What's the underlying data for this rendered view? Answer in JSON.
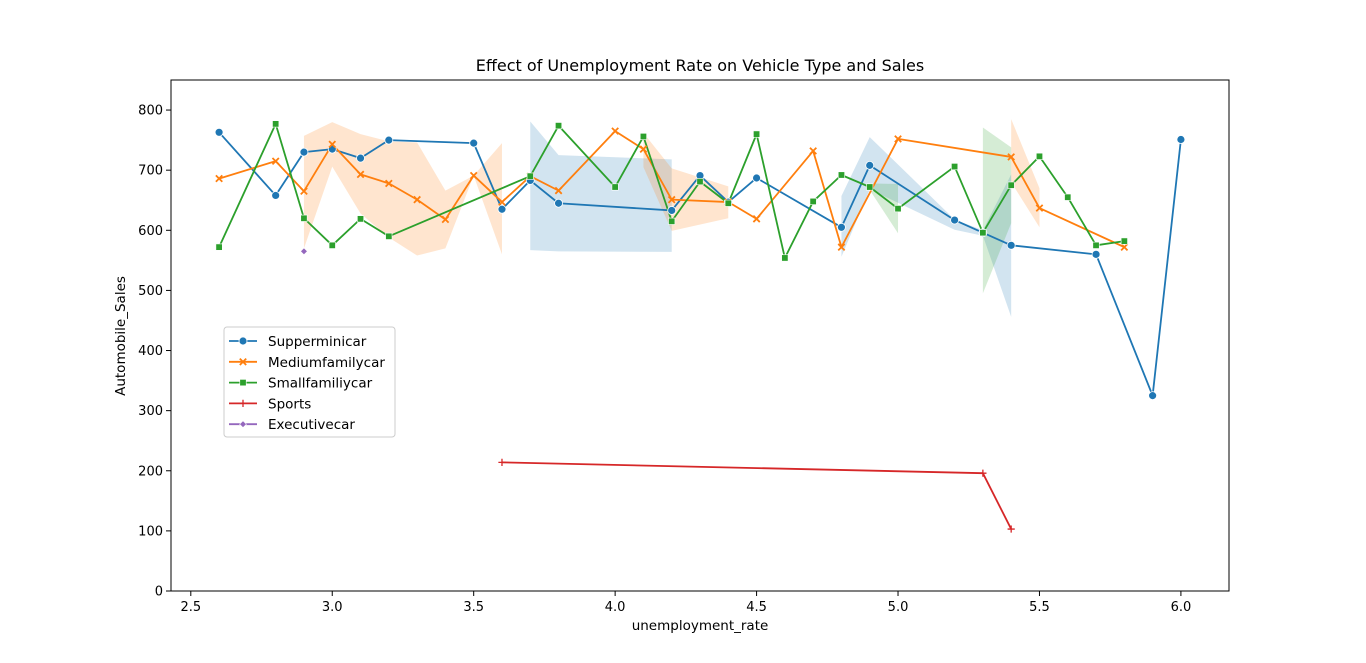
{
  "chart_data": {
    "type": "line",
    "title": "Effect of Unemployment Rate on Vehicle Type and Sales",
    "xlabel": "unemployment_rate",
    "ylabel": "Automobile_Sales",
    "xlim": [
      2.43,
      6.17
    ],
    "ylim": [
      0,
      850
    ],
    "xticks": [
      2.5,
      3.0,
      3.5,
      4.0,
      4.5,
      5.0,
      5.5,
      6.0
    ],
    "xtick_labels": [
      "2.5",
      "3.0",
      "3.5",
      "4.0",
      "4.5",
      "5.0",
      "5.5",
      "6.0"
    ],
    "yticks": [
      0,
      100,
      200,
      300,
      400,
      500,
      600,
      700,
      800
    ],
    "ytick_labels": [
      "0",
      "100",
      "200",
      "300",
      "400",
      "500",
      "600",
      "700",
      "800"
    ],
    "grid": false,
    "legend_position": "center-left",
    "series": [
      {
        "name": "Supperminicar",
        "color": "#1f77b4",
        "marker": "circle",
        "x": [
          2.6,
          2.8,
          2.9,
          3.0,
          3.1,
          3.2,
          3.5,
          3.6,
          3.7,
          3.8,
          4.2,
          4.3,
          4.4,
          4.5,
          4.8,
          4.9,
          5.2,
          5.3,
          5.4,
          5.7,
          5.9,
          6.0
        ],
        "y": [
          763,
          658,
          730,
          735,
          720,
          750,
          745,
          635,
          683,
          645,
          633,
          691,
          647,
          687,
          605,
          708,
          617,
          596,
          575,
          560,
          325,
          751
        ],
        "ci": [
          {
            "x": [
              3.7,
              3.8,
              4.2
            ],
            "lo": [
              567,
              565,
              564
            ],
            "hi": [
              781,
              725,
              718
            ]
          },
          {
            "x": [
              4.8,
              4.9,
              5.2,
              5.3,
              5.4
            ],
            "lo": [
              556,
              668,
              601,
              591,
              456
            ],
            "hi": [
              657,
              755,
              618,
              600,
              693
            ]
          }
        ]
      },
      {
        "name": "Mediumfamilycar",
        "color": "#ff7f0e",
        "marker": "x",
        "x": [
          2.6,
          2.8,
          2.9,
          3.0,
          3.1,
          3.2,
          3.3,
          3.4,
          3.5,
          3.6,
          3.7,
          3.8,
          4.0,
          4.1,
          4.2,
          4.4,
          4.5,
          4.7,
          4.8,
          5.0,
          5.4,
          5.5,
          5.8
        ],
        "y": [
          686,
          715,
          665,
          743,
          693,
          678,
          651,
          618,
          691,
          647,
          690,
          666,
          765,
          735,
          651,
          647,
          619,
          732,
          572,
          752,
          722,
          637,
          572
        ],
        "ci": [
          {
            "x": [
              2.9,
              3.0,
              3.1,
              3.2,
              3.3,
              3.4,
              3.5,
              3.6
            ],
            "lo": [
              570,
              706,
              628,
              588,
              558,
              570,
              691,
              560
            ],
            "hi": [
              757,
              780,
              760,
              748,
              746,
              666,
              691,
              745
            ]
          },
          {
            "x": [
              4.1,
              4.2,
              4.4
            ],
            "lo": [
              705,
              599,
              620
            ],
            "hi": [
              762,
              703,
              673
            ]
          },
          {
            "x": [
              5.4,
              5.5
            ],
            "lo": [
              680,
              605
            ],
            "hi": [
              785,
              670
            ]
          }
        ]
      },
      {
        "name": "Smallfamiliycar",
        "color": "#2ca02c",
        "marker": "square",
        "x": [
          2.6,
          2.8,
          2.9,
          3.0,
          3.1,
          3.2,
          3.7,
          3.8,
          4.0,
          4.1,
          4.2,
          4.3,
          4.4,
          4.5,
          4.6,
          4.7,
          4.8,
          4.9,
          5.0,
          5.2,
          5.3,
          5.4,
          5.5,
          5.6,
          5.7,
          5.8
        ],
        "y": [
          572,
          777,
          620,
          575,
          619,
          590,
          690,
          774,
          672,
          756,
          615,
          681,
          645,
          760,
          554,
          648,
          692,
          672,
          636,
          706,
          596,
          675,
          723,
          655,
          575,
          582
        ],
        "ci": [
          {
            "x": [
              4.9,
              5.0
            ],
            "lo": [
              667,
              595
            ],
            "hi": [
              678,
              677
            ]
          },
          {
            "x": [
              5.3,
              5.4
            ],
            "lo": [
              495,
              612
            ],
            "hi": [
              771,
              738
            ]
          }
        ]
      },
      {
        "name": "Sports",
        "color": "#d62728",
        "marker": "plus",
        "x": [
          3.6,
          5.3,
          5.4
        ],
        "y": [
          214,
          196,
          103
        ],
        "ci": []
      },
      {
        "name": "Executivecar",
        "color": "#9467bd",
        "marker": "diamond",
        "x": [
          2.9
        ],
        "y": [
          565
        ],
        "ci": []
      }
    ]
  }
}
